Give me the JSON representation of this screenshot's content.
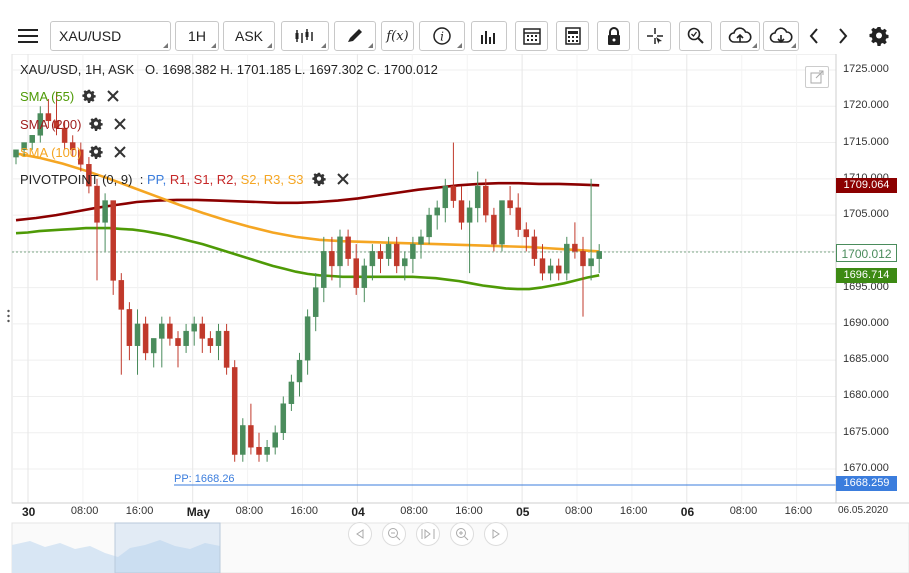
{
  "toolbar": {
    "symbol": "XAU/USD",
    "timeframe": "1H",
    "price_type": "ASK"
  },
  "chart_info": {
    "symbol_line": "XAU/USD, 1H, ASK",
    "open": "O. 1698.382",
    "high": "H. 1701.185",
    "low": "L. 1697.302",
    "close": "C. 1700.012"
  },
  "indicators": [
    {
      "label": "SMA (55)",
      "color": "#4e9a06"
    },
    {
      "label": "SMA (200)",
      "color": "#9e1b1b"
    },
    {
      "label": "SMA (100)",
      "color": "#f5a623"
    }
  ],
  "pivot": {
    "name": "PIVOTPOINT (0, 9)",
    "sep": ":",
    "levels": [
      {
        "label": "PP",
        "color": "#3b7ddd"
      },
      {
        "label": "R1",
        "color": "#c62828"
      },
      {
        "label": "S1",
        "color": "#c62828"
      },
      {
        "label": "R2",
        "color": "#c62828"
      },
      {
        "label": "S2",
        "color": "#f5a623"
      },
      {
        "label": "R3",
        "color": "#f5a623"
      },
      {
        "label": "S3",
        "color": "#f5a623"
      }
    ],
    "pp_line_label": "PP: 1668.26",
    "pp_value": 1668.26
  },
  "y_axis": {
    "ticks": [
      "1725.000",
      "1720.000",
      "1715.000",
      "1710.000",
      "1705.000",
      "1700.000",
      "1695.000",
      "1690.000",
      "1685.000",
      "1680.000",
      "1675.000",
      "1670.000"
    ]
  },
  "x_axis": {
    "ticks": [
      "30",
      "08:00",
      "16:00",
      "May",
      "08:00",
      "16:00",
      "04",
      "08:00",
      "16:00",
      "05",
      "08:00",
      "16:00",
      "06",
      "08:00",
      "16:00",
      "06.05.2020"
    ]
  },
  "price_tags": {
    "sma200": "1709.064",
    "current": "1700.012",
    "sma55": "1696.714",
    "pp": "1668.259"
  },
  "chart_data": {
    "type": "candlestick",
    "symbol": "XAU/USD",
    "timeframe": "1H",
    "ylim": [
      1666,
      1727
    ],
    "colors": {
      "up": "#4a8c5c",
      "down": "#c0392b",
      "sma55": "#4e9a06",
      "sma100": "#f5a623",
      "sma200": "#8b0000",
      "pp": "#3b7ddd"
    },
    "candles": [
      [
        1713,
        1714,
        1712,
        1714
      ],
      [
        1714,
        1715,
        1713,
        1715
      ],
      [
        1715,
        1716,
        1714,
        1716
      ],
      [
        1716,
        1720,
        1715,
        1719
      ],
      [
        1719,
        1721,
        1717,
        1718
      ],
      [
        1718,
        1722,
        1716,
        1717
      ],
      [
        1717,
        1718,
        1714,
        1715
      ],
      [
        1715,
        1716,
        1713,
        1714
      ],
      [
        1714,
        1715,
        1711,
        1712
      ],
      [
        1712,
        1713,
        1708,
        1709
      ],
      [
        1709,
        1710,
        1696,
        1704
      ],
      [
        1704,
        1708,
        1700,
        1707
      ],
      [
        1707,
        1707,
        1694,
        1696
      ],
      [
        1696,
        1697,
        1683,
        1692
      ],
      [
        1692,
        1693,
        1685,
        1687
      ],
      [
        1687,
        1692,
        1683,
        1690
      ],
      [
        1690,
        1691,
        1685,
        1686
      ],
      [
        1686,
        1688,
        1684,
        1688
      ],
      [
        1688,
        1691,
        1684,
        1690
      ],
      [
        1690,
        1691,
        1687,
        1688
      ],
      [
        1688,
        1689,
        1684,
        1687
      ],
      [
        1687,
        1690,
        1686,
        1689
      ],
      [
        1689,
        1691,
        1687,
        1690
      ],
      [
        1690,
        1691,
        1686,
        1688
      ],
      [
        1688,
        1689,
        1686,
        1687
      ],
      [
        1687,
        1690,
        1685,
        1689
      ],
      [
        1689,
        1690,
        1683,
        1684
      ],
      [
        1684,
        1685,
        1671,
        1672
      ],
      [
        1672,
        1677,
        1671,
        1676
      ],
      [
        1676,
        1679,
        1672,
        1673
      ],
      [
        1673,
        1675,
        1671,
        1672
      ],
      [
        1672,
        1674,
        1671,
        1673
      ],
      [
        1673,
        1676,
        1672,
        1675
      ],
      [
        1675,
        1680,
        1674,
        1679
      ],
      [
        1679,
        1683,
        1678,
        1682
      ],
      [
        1682,
        1686,
        1680,
        1685
      ],
      [
        1685,
        1692,
        1683,
        1691
      ],
      [
        1691,
        1697,
        1689,
        1695
      ],
      [
        1695,
        1702,
        1693,
        1700
      ],
      [
        1700,
        1702,
        1696,
        1698
      ],
      [
        1698,
        1703,
        1695,
        1702
      ],
      [
        1702,
        1703,
        1698,
        1699
      ],
      [
        1699,
        1701,
        1694,
        1695
      ],
      [
        1695,
        1699,
        1693,
        1698
      ],
      [
        1698,
        1701,
        1696,
        1700
      ],
      [
        1700,
        1701,
        1697,
        1699
      ],
      [
        1699,
        1702,
        1698,
        1701
      ],
      [
        1701,
        1702,
        1697,
        1698
      ],
      [
        1698,
        1700,
        1696,
        1699
      ],
      [
        1699,
        1702,
        1697,
        1701
      ],
      [
        1701,
        1703,
        1699,
        1702
      ],
      [
        1702,
        1706,
        1701,
        1705
      ],
      [
        1705,
        1707,
        1703,
        1706
      ],
      [
        1706,
        1710,
        1704,
        1709
      ],
      [
        1709,
        1715,
        1706,
        1707
      ],
      [
        1707,
        1709,
        1703,
        1704
      ],
      [
        1704,
        1707,
        1697,
        1706
      ],
      [
        1706,
        1711,
        1704,
        1709
      ],
      [
        1709,
        1710,
        1704,
        1705
      ],
      [
        1705,
        1706,
        1700,
        1701
      ],
      [
        1701,
        1707,
        1700,
        1707
      ],
      [
        1707,
        1709,
        1705,
        1706
      ],
      [
        1706,
        1708,
        1702,
        1703
      ],
      [
        1703,
        1704,
        1700,
        1702
      ],
      [
        1702,
        1703,
        1698,
        1699
      ],
      [
        1699,
        1701,
        1696,
        1697
      ],
      [
        1697,
        1699,
        1696,
        1698
      ],
      [
        1698,
        1699,
        1696,
        1697
      ],
      [
        1697,
        1702,
        1696,
        1701
      ],
      [
        1701,
        1704,
        1699,
        1700
      ],
      [
        1700,
        1702,
        1691,
        1698
      ],
      [
        1698,
        1710,
        1696,
        1699
      ],
      [
        1699,
        1701,
        1697,
        1700
      ]
    ],
    "sma55": [
      1702.5,
      1702.6,
      1702.8,
      1702.9,
      1703.0,
      1703.1,
      1703.2,
      1703.2,
      1703.2,
      1703.1,
      1703.0,
      1702.8,
      1702.5,
      1702.2,
      1701.8,
      1701.4,
      1701.0,
      1700.5,
      1700.0,
      1699.5,
      1699.0,
      1698.5,
      1698.0,
      1697.6,
      1697.2,
      1696.9,
      1696.7,
      1696.6,
      1696.5,
      1696.5,
      1696.5,
      1696.5,
      1696.5,
      1696.5,
      1696.5,
      1696.4,
      1696.3,
      1696.1,
      1695.9,
      1695.6,
      1695.3,
      1695.1,
      1694.9,
      1694.8,
      1694.8,
      1695.0,
      1695.3,
      1695.6,
      1696.0,
      1696.4,
      1696.7
    ],
    "sma100": [
      1713.5,
      1712.9,
      1712.1,
      1711.1,
      1710.0,
      1708.8,
      1707.6,
      1706.4,
      1705.3,
      1704.3,
      1703.4,
      1702.6,
      1702.0,
      1701.6,
      1701.4,
      1701.3,
      1701.2,
      1701.1,
      1701.0,
      1700.9,
      1700.8,
      1700.7,
      1700.6,
      1700.4,
      1700.2,
      1700.0
    ],
    "sma200": [
      1704.3,
      1704.6,
      1705.0,
      1705.5,
      1706.0,
      1706.4,
      1706.8,
      1707.0,
      1707.1,
      1707.1,
      1707.0,
      1706.9,
      1706.8,
      1706.7,
      1706.7,
      1706.8,
      1707.0,
      1707.3,
      1707.7,
      1708.1,
      1708.5,
      1708.8,
      1709.1,
      1709.3,
      1709.4,
      1709.4,
      1709.3,
      1709.3,
      1709.2,
      1709.1
    ]
  }
}
